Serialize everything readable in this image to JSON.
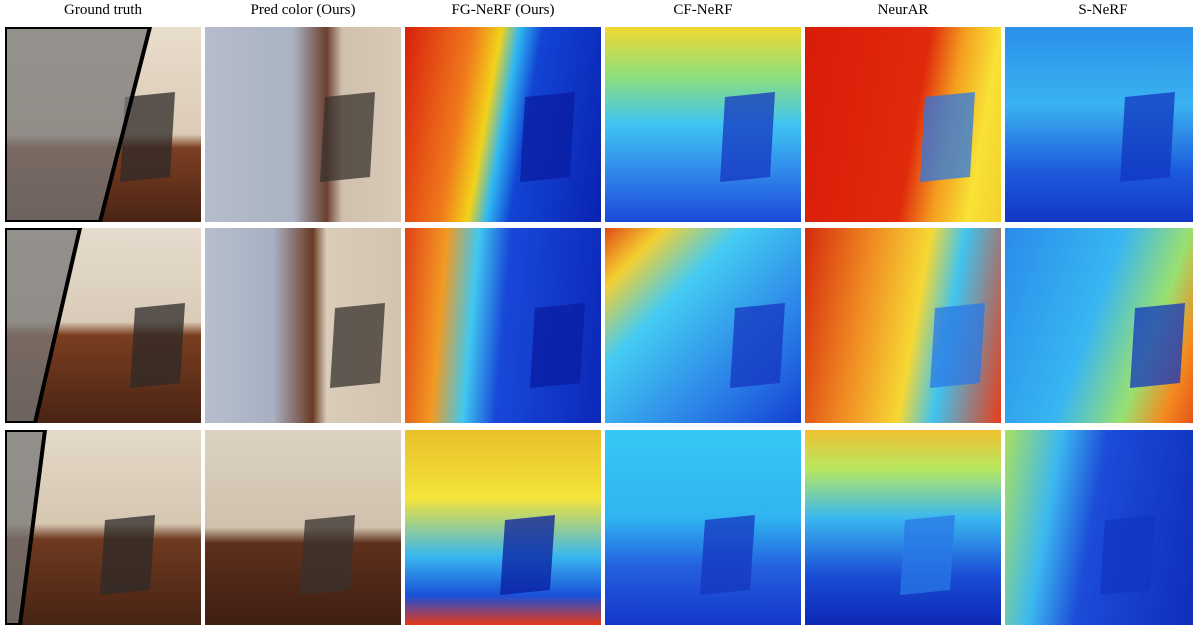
{
  "columns": [
    "Ground truth",
    "Pred color (Ours)",
    "FG-NeRF (Ours)",
    "CF-NeRF",
    "NeurAR",
    "S-NeRF"
  ]
}
